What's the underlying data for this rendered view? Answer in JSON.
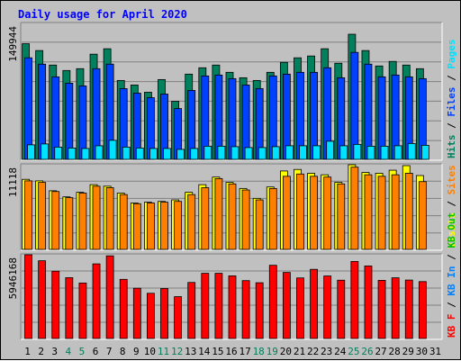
{
  "chart_data": {
    "type": "bar",
    "title": "Daily usage for April 2020",
    "days": [
      "1",
      "2",
      "3",
      "4",
      "5",
      "6",
      "7",
      "8",
      "9",
      "10",
      "11",
      "12",
      "13",
      "14",
      "15",
      "16",
      "17",
      "18",
      "19",
      "20",
      "21",
      "22",
      "23",
      "24",
      "25",
      "26",
      "27",
      "28",
      "29",
      "30",
      "31"
    ],
    "weekend_days": [
      "4",
      "5",
      "11",
      "12",
      "18",
      "19",
      "25",
      "26"
    ],
    "panels": [
      {
        "id": "hits-files-pages",
        "scale_label": "149944",
        "ymax": 149944,
        "side_label": [
          {
            "text": "Hits",
            "color": "#00805c"
          },
          {
            "text": " / ",
            "color": "#000000"
          },
          {
            "text": "Files",
            "color": "#0040ff"
          },
          {
            "text": " / ",
            "color": "#000000"
          },
          {
            "text": "Pages",
            "color": "#00e0ff"
          }
        ],
        "series": [
          {
            "name": "Hits",
            "color": "#00805c",
            "values": [
              127500,
              120000,
              104000,
              98000,
              100000,
              116000,
              122000,
              87000,
              82000,
              74000,
              88000,
              64000,
              94000,
              101000,
              104000,
              96000,
              90000,
              87000,
              96000,
              107000,
              112000,
              114000,
              122000,
              106000,
              138000,
              120000,
              103000,
              108000,
              104000,
              100000,
              0
            ]
          },
          {
            "name": "Files",
            "color": "#0040ff",
            "values": [
              112000,
              105000,
              91000,
              84000,
              81000,
              100000,
              105000,
              78000,
              73000,
              68000,
              72000,
              56000,
              76000,
              92000,
              93000,
              89000,
              82000,
              78000,
              92000,
              94000,
              96000,
              96000,
              101000,
              90000,
              118000,
              105000,
              91000,
              93000,
              91000,
              89000,
              0
            ]
          },
          {
            "name": "Pages",
            "color": "#00e0ff",
            "values": [
              16000,
              17000,
              13500,
              12500,
              12000,
              15000,
              21000,
              13500,
              12500,
              12000,
              12000,
              11000,
              12000,
              14500,
              14500,
              14000,
              13000,
              13000,
              14000,
              15000,
              15000,
              15000,
              20000,
              15000,
              16500,
              14500,
              14500,
              15000,
              17500,
              15500,
              0
            ]
          }
        ]
      },
      {
        "id": "visits-sites",
        "scale_label": "11118",
        "ymax": 11118,
        "side_label": [
          {
            "text": "Visits",
            "color": "#ffff00"
          },
          {
            "text": " / ",
            "color": "#000000"
          },
          {
            "text": "Sites",
            "color": "#ff8000"
          }
        ],
        "series": [
          {
            "name": "Visits",
            "color": "#ffff00",
            "values": [
              9200,
              9000,
              7700,
              6900,
              7500,
              8500,
              8300,
              7400,
              6100,
              6200,
              6300,
              6500,
              7500,
              8500,
              9500,
              8800,
              8000,
              6700,
              8200,
              10300,
              10500,
              10000,
              9800,
              8800,
              11118,
              10100,
              10000,
              10400,
              11000,
              9700,
              0
            ]
          },
          {
            "name": "Sites",
            "color": "#ff8000",
            "values": [
              9000,
              8800,
              7600,
              6800,
              7400,
              8300,
              8100,
              7200,
              6000,
              6100,
              6200,
              6300,
              7200,
              8100,
              9300,
              8600,
              7800,
              6500,
              8000,
              9600,
              9900,
              9600,
              9500,
              8600,
              10800,
              9800,
              9600,
              9800,
              10000,
              8900,
              0
            ]
          }
        ]
      },
      {
        "id": "kbytes",
        "scale_label": "5946168",
        "ymax": 5946168,
        "side_label": [
          {
            "text": "KB F",
            "color": "#ff0000"
          },
          {
            "text": " / ",
            "color": "#000000"
          },
          {
            "text": "KB In",
            "color": "#0080ff"
          },
          {
            "text": " / ",
            "color": "#000000"
          },
          {
            "text": "KB Out",
            "color": "#00c000"
          }
        ],
        "series": [
          {
            "name": "KB F",
            "color": "#ff0000",
            "values": [
              5946168,
              5520000,
              4780000,
              4320000,
              3940000,
              5300000,
              5870000,
              4200000,
              3570000,
              3210000,
              3550000,
              2970000,
              3980000,
              4630000,
              4630000,
              4450000,
              4110000,
              3960000,
              5200000,
              4690000,
              4300000,
              4910000,
              4440000,
              4140000,
              5470000,
              5150000,
              4130000,
              4310000,
              4150000,
              4040000,
              0
            ]
          }
        ]
      }
    ]
  }
}
